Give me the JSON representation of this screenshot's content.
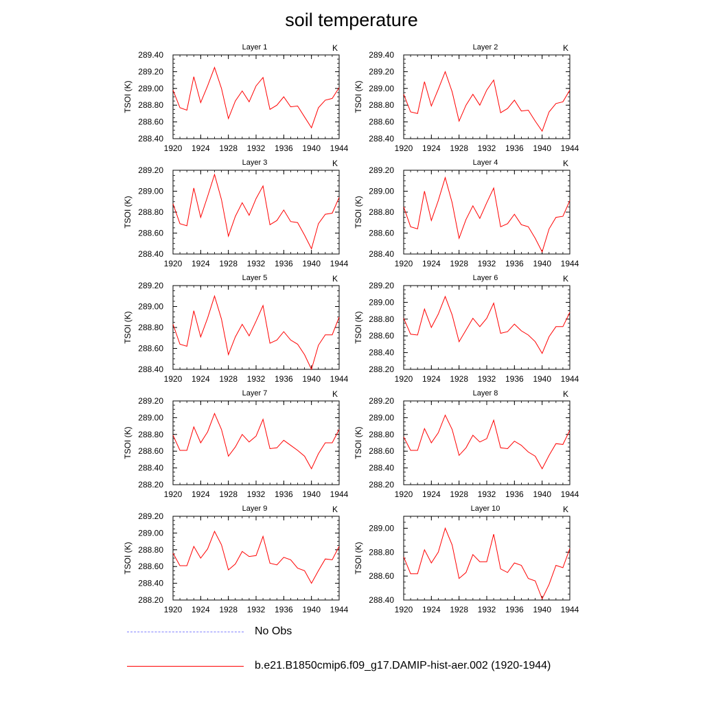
{
  "title": "soil temperature",
  "legend": {
    "obs_label": "No Obs",
    "obs_color": "#8080ff",
    "model_label": "b.e21.B1850cmip6.f09_g17.DAMIP-hist-aer.002 (1920-1944)",
    "model_color": "#ff0000"
  },
  "chart_data": [
    {
      "type": "line",
      "title": "Layer 1",
      "units": "K",
      "ylabel": "TSOI  (K)",
      "xlim": [
        1920,
        1944
      ],
      "xticks": [
        "1920",
        "1924",
        "1928",
        "1932",
        "1936",
        "1940",
        "1944"
      ],
      "ylim": [
        288.4,
        289.4
      ],
      "yticks": [
        "288.40",
        "288.60",
        "288.80",
        "289.00",
        "289.20",
        "289.40"
      ],
      "x": [
        1920,
        1921,
        1922,
        1923,
        1924,
        1925,
        1926,
        1927,
        1928,
        1929,
        1930,
        1931,
        1932,
        1933,
        1934,
        1935,
        1936,
        1937,
        1938,
        1939,
        1940,
        1941,
        1942,
        1943,
        1944
      ],
      "series": [
        {
          "values": [
            288.98,
            288.77,
            288.74,
            289.14,
            288.83,
            289.03,
            289.25,
            289.0,
            288.64,
            288.85,
            288.97,
            288.84,
            289.03,
            289.13,
            288.75,
            288.8,
            288.9,
            288.78,
            288.79,
            288.66,
            288.53,
            288.77,
            288.86,
            288.88,
            289.01
          ]
        }
      ]
    },
    {
      "type": "line",
      "title": "Layer 2",
      "units": "K",
      "ylabel": "TSOI  (K)",
      "xlim": [
        1920,
        1944
      ],
      "xticks": [
        "1920",
        "1924",
        "1928",
        "1932",
        "1936",
        "1940",
        "1944"
      ],
      "ylim": [
        288.4,
        289.4
      ],
      "yticks": [
        "288.40",
        "288.60",
        "288.80",
        "289.00",
        "289.20",
        "289.40"
      ],
      "x": [
        1920,
        1921,
        1922,
        1923,
        1924,
        1925,
        1926,
        1927,
        1928,
        1929,
        1930,
        1931,
        1932,
        1933,
        1934,
        1935,
        1936,
        1937,
        1938,
        1939,
        1940,
        1941,
        1942,
        1943,
        1944
      ],
      "series": [
        {
          "values": [
            288.93,
            288.72,
            288.7,
            289.08,
            288.79,
            288.99,
            289.2,
            288.96,
            288.61,
            288.8,
            288.93,
            288.8,
            288.98,
            289.1,
            288.71,
            288.76,
            288.86,
            288.73,
            288.74,
            288.61,
            288.49,
            288.72,
            288.82,
            288.84,
            288.98
          ]
        }
      ]
    },
    {
      "type": "line",
      "title": "Layer 3",
      "units": "K",
      "ylabel": "TSOI  (K)",
      "xlim": [
        1920,
        1944
      ],
      "xticks": [
        "1920",
        "1924",
        "1928",
        "1932",
        "1936",
        "1940",
        "1944"
      ],
      "ylim": [
        288.4,
        289.2
      ],
      "yticks": [
        "288.40",
        "288.60",
        "288.80",
        "289.00",
        "289.20"
      ],
      "x": [
        1920,
        1921,
        1922,
        1923,
        1924,
        1925,
        1926,
        1927,
        1928,
        1929,
        1930,
        1931,
        1932,
        1933,
        1934,
        1935,
        1936,
        1937,
        1938,
        1939,
        1940,
        1941,
        1942,
        1943,
        1944
      ],
      "series": [
        {
          "values": [
            288.88,
            288.69,
            288.67,
            289.03,
            288.75,
            288.95,
            289.16,
            288.92,
            288.57,
            288.76,
            288.89,
            288.77,
            288.93,
            289.05,
            288.68,
            288.72,
            288.82,
            288.71,
            288.7,
            288.58,
            288.45,
            288.69,
            288.78,
            288.79,
            288.94
          ]
        }
      ]
    },
    {
      "type": "line",
      "title": "Layer 4",
      "units": "K",
      "ylabel": "TSOI  (K)",
      "xlim": [
        1920,
        1944
      ],
      "xticks": [
        "1920",
        "1924",
        "1928",
        "1932",
        "1936",
        "1940",
        "1944"
      ],
      "ylim": [
        288.4,
        289.2
      ],
      "yticks": [
        "288.40",
        "288.60",
        "288.80",
        "289.00",
        "289.20"
      ],
      "x": [
        1920,
        1921,
        1922,
        1923,
        1924,
        1925,
        1926,
        1927,
        1928,
        1929,
        1930,
        1931,
        1932,
        1933,
        1934,
        1935,
        1936,
        1937,
        1938,
        1939,
        1940,
        1941,
        1942,
        1943,
        1944
      ],
      "series": [
        {
          "values": [
            288.85,
            288.66,
            288.64,
            289.0,
            288.72,
            288.91,
            289.13,
            288.89,
            288.55,
            288.73,
            288.86,
            288.74,
            288.89,
            289.03,
            288.66,
            288.69,
            288.78,
            288.68,
            288.66,
            288.55,
            288.42,
            288.64,
            288.75,
            288.76,
            288.91
          ]
        }
      ]
    },
    {
      "type": "line",
      "title": "Layer 5",
      "units": "K",
      "ylabel": "TSOI  (K)",
      "xlim": [
        1920,
        1944
      ],
      "xticks": [
        "1920",
        "1924",
        "1928",
        "1932",
        "1936",
        "1940",
        "1944"
      ],
      "ylim": [
        288.4,
        289.2
      ],
      "yticks": [
        "288.40",
        "288.60",
        "288.80",
        "289.00",
        "289.20"
      ],
      "x": [
        1920,
        1921,
        1922,
        1923,
        1924,
        1925,
        1926,
        1927,
        1928,
        1929,
        1930,
        1931,
        1932,
        1933,
        1934,
        1935,
        1936,
        1937,
        1938,
        1939,
        1940,
        1941,
        1942,
        1943,
        1944
      ],
      "series": [
        {
          "values": [
            288.83,
            288.64,
            288.62,
            288.96,
            288.71,
            288.89,
            289.1,
            288.88,
            288.54,
            288.71,
            288.83,
            288.72,
            288.86,
            289.01,
            288.65,
            288.68,
            288.76,
            288.68,
            288.64,
            288.54,
            288.4,
            288.63,
            288.73,
            288.73,
            288.9
          ]
        }
      ]
    },
    {
      "type": "line",
      "title": "Layer 6",
      "units": "K",
      "ylabel": "TSOI  (K)",
      "xlim": [
        1920,
        1944
      ],
      "xticks": [
        "1920",
        "1924",
        "1928",
        "1932",
        "1936",
        "1940",
        "1944"
      ],
      "ylim": [
        288.2,
        289.2
      ],
      "yticks": [
        "288.20",
        "288.40",
        "288.60",
        "288.80",
        "289.00",
        "289.20"
      ],
      "x": [
        1920,
        1921,
        1922,
        1923,
        1924,
        1925,
        1926,
        1927,
        1928,
        1929,
        1930,
        1931,
        1932,
        1933,
        1934,
        1935,
        1936,
        1937,
        1938,
        1939,
        1940,
        1941,
        1942,
        1943,
        1944
      ],
      "series": [
        {
          "values": [
            288.81,
            288.62,
            288.61,
            288.92,
            288.7,
            288.86,
            289.07,
            288.85,
            288.53,
            288.67,
            288.81,
            288.71,
            288.81,
            288.99,
            288.63,
            288.65,
            288.74,
            288.66,
            288.61,
            288.53,
            288.39,
            288.59,
            288.71,
            288.71,
            288.88
          ]
        }
      ]
    },
    {
      "type": "line",
      "title": "Layer 7",
      "units": "K",
      "ylabel": "TSOI  (K)",
      "xlim": [
        1920,
        1944
      ],
      "xticks": [
        "1920",
        "1924",
        "1928",
        "1932",
        "1936",
        "1940",
        "1944"
      ],
      "ylim": [
        288.2,
        289.2
      ],
      "yticks": [
        "288.20",
        "288.40",
        "288.60",
        "288.80",
        "289.00",
        "289.20"
      ],
      "x": [
        1920,
        1921,
        1922,
        1923,
        1924,
        1925,
        1926,
        1927,
        1928,
        1929,
        1930,
        1931,
        1932,
        1933,
        1934,
        1935,
        1936,
        1937,
        1938,
        1939,
        1940,
        1941,
        1942,
        1943,
        1944
      ],
      "series": [
        {
          "values": [
            288.79,
            288.61,
            288.61,
            288.89,
            288.7,
            288.83,
            289.05,
            288.86,
            288.54,
            288.65,
            288.8,
            288.71,
            288.78,
            288.98,
            288.63,
            288.64,
            288.73,
            288.67,
            288.61,
            288.54,
            288.39,
            288.57,
            288.7,
            288.7,
            288.86
          ]
        }
      ]
    },
    {
      "type": "line",
      "title": "Layer 8",
      "units": "K",
      "ylabel": "TSOI  (K)",
      "xlim": [
        1920,
        1944
      ],
      "xticks": [
        "1920",
        "1924",
        "1928",
        "1932",
        "1936",
        "1940",
        "1944"
      ],
      "ylim": [
        288.2,
        289.2
      ],
      "yticks": [
        "288.20",
        "288.40",
        "288.60",
        "288.80",
        "289.00",
        "289.20"
      ],
      "x": [
        1920,
        1921,
        1922,
        1923,
        1924,
        1925,
        1926,
        1927,
        1928,
        1929,
        1930,
        1931,
        1932,
        1933,
        1934,
        1935,
        1936,
        1937,
        1938,
        1939,
        1940,
        1941,
        1942,
        1943,
        1944
      ],
      "series": [
        {
          "values": [
            288.77,
            288.61,
            288.61,
            288.87,
            288.7,
            288.82,
            289.03,
            288.86,
            288.55,
            288.64,
            288.79,
            288.71,
            288.75,
            288.97,
            288.64,
            288.63,
            288.72,
            288.67,
            288.59,
            288.54,
            288.39,
            288.55,
            288.69,
            288.68,
            288.85
          ]
        }
      ]
    },
    {
      "type": "line",
      "title": "Layer 9",
      "units": "K",
      "ylabel": "TSOI  (K)",
      "xlim": [
        1920,
        1944
      ],
      "xticks": [
        "1920",
        "1924",
        "1928",
        "1932",
        "1936",
        "1940",
        "1944"
      ],
      "ylim": [
        288.2,
        289.2
      ],
      "yticks": [
        "288.20",
        "288.40",
        "288.60",
        "288.80",
        "289.00",
        "289.20"
      ],
      "x": [
        1920,
        1921,
        1922,
        1923,
        1924,
        1925,
        1926,
        1927,
        1928,
        1929,
        1930,
        1931,
        1932,
        1933,
        1934,
        1935,
        1936,
        1937,
        1938,
        1939,
        1940,
        1941,
        1942,
        1943,
        1944
      ],
      "series": [
        {
          "values": [
            288.76,
            288.61,
            288.61,
            288.84,
            288.7,
            288.81,
            289.02,
            288.86,
            288.56,
            288.63,
            288.78,
            288.72,
            288.73,
            288.96,
            288.64,
            288.62,
            288.71,
            288.68,
            288.58,
            288.55,
            288.4,
            288.55,
            288.69,
            288.68,
            288.84
          ]
        }
      ]
    },
    {
      "type": "line",
      "title": "Layer 10",
      "units": "K",
      "ylabel": "TSOI  (K)",
      "xlim": [
        1920,
        1944
      ],
      "xticks": [
        "1920",
        "1924",
        "1928",
        "1932",
        "1936",
        "1940",
        "1944"
      ],
      "ylim": [
        288.4,
        289.1
      ],
      "yticks": [
        "288.40",
        "288.60",
        "288.80",
        "289.00"
      ],
      "x": [
        1920,
        1921,
        1922,
        1923,
        1924,
        1925,
        1926,
        1927,
        1928,
        1929,
        1930,
        1931,
        1932,
        1933,
        1934,
        1935,
        1936,
        1937,
        1938,
        1939,
        1940,
        1941,
        1942,
        1943,
        1944
      ],
      "series": [
        {
          "values": [
            288.76,
            288.62,
            288.62,
            288.82,
            288.71,
            288.8,
            289.0,
            288.86,
            288.58,
            288.63,
            288.78,
            288.72,
            288.72,
            288.95,
            288.66,
            288.63,
            288.71,
            288.69,
            288.58,
            288.56,
            288.41,
            288.53,
            288.69,
            288.67,
            288.83
          ]
        }
      ]
    }
  ]
}
